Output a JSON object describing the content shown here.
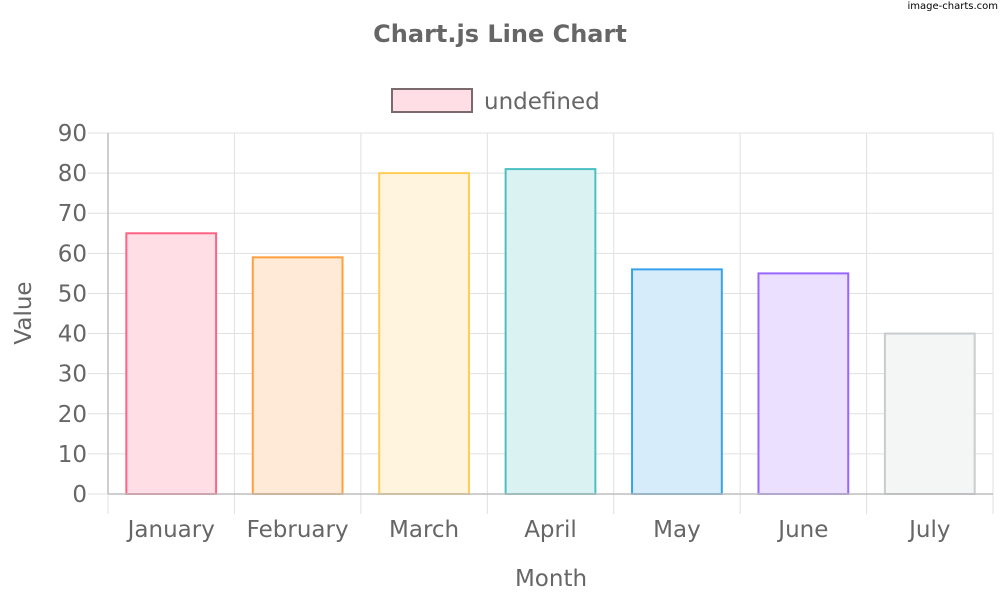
{
  "watermark": "image-charts.com",
  "chart_data": {
    "type": "bar",
    "title": "Chart.js Line Chart",
    "xlabel": "Month",
    "ylabel": "Value",
    "ylim": [
      0,
      90
    ],
    "y_ticks": [
      0,
      10,
      20,
      30,
      40,
      50,
      60,
      70,
      80,
      90
    ],
    "grid": true,
    "legend_position": "top",
    "categories": [
      "January",
      "February",
      "March",
      "April",
      "May",
      "June",
      "July"
    ],
    "series": [
      {
        "name": "undefined",
        "values": [
          65,
          59,
          80,
          81,
          56,
          55,
          40
        ]
      }
    ],
    "bar_colors": [
      {
        "fill": "#ffdfe5",
        "border": "#ff6384"
      },
      {
        "fill": "#ffe9d7",
        "border": "#ff9f40"
      },
      {
        "fill": "#fff4de",
        "border": "#ffcd56"
      },
      {
        "fill": "#dbf2f2",
        "border": "#4bc0c0"
      },
      {
        "fill": "#d7ecfb",
        "border": "#36a2eb"
      },
      {
        "fill": "#ebe0ff",
        "border": "#9966ff"
      },
      {
        "fill": "#f4f5f5",
        "border": "#c9cbcf"
      }
    ],
    "legend_swatch": {
      "fill": "#ffdfe5",
      "border": "#7a6a6e"
    }
  }
}
